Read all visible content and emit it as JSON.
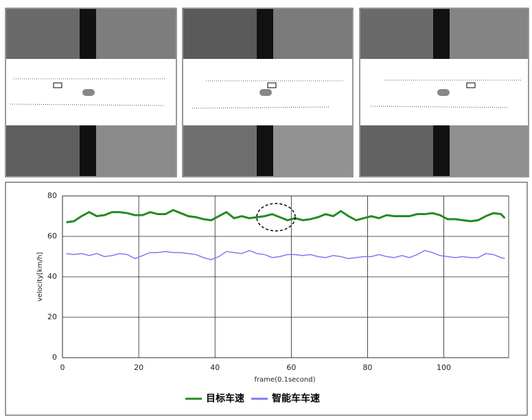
{
  "chart_data": {
    "type": "line",
    "x_label": "frame(0.1second)",
    "y_label": "velocity[km/h]",
    "x": [
      1,
      3,
      5,
      7,
      9,
      11,
      13,
      15,
      17,
      19,
      21,
      23,
      25,
      27,
      29,
      31,
      33,
      35,
      37,
      39,
      41,
      43,
      45,
      47,
      49,
      51,
      53,
      55,
      57,
      59,
      61,
      63,
      65,
      67,
      69,
      71,
      73,
      75,
      77,
      79,
      81,
      83,
      85,
      87,
      89,
      91,
      93,
      95,
      97,
      99,
      101,
      103,
      105,
      107,
      109,
      111,
      113,
      115,
      116
    ],
    "series": [
      {
        "name": "目标车速",
        "color": "#228b22",
        "values": [
          67,
          67.5,
          70,
          72,
          70,
          70.5,
          72,
          72,
          71.5,
          70.5,
          70.5,
          72,
          71,
          71,
          73,
          71.5,
          70,
          69.5,
          68.5,
          68,
          70,
          72,
          69,
          70,
          69,
          69.5,
          70,
          71,
          69.5,
          68,
          69,
          68,
          68.5,
          69.5,
          71,
          70,
          72.5,
          70,
          68,
          69,
          70,
          69,
          70.5,
          70,
          70,
          70,
          71,
          71,
          71.5,
          70.5,
          68.5,
          68.5,
          68,
          67.5,
          68,
          70,
          71.5,
          71,
          69
        ]
      },
      {
        "name": "智能车车速",
        "color": "#7b7bf0",
        "values": [
          51.5,
          51,
          51.5,
          50.5,
          51.5,
          50,
          50.5,
          51.5,
          51,
          49,
          50.5,
          52,
          52,
          52.5,
          52,
          52,
          51.5,
          51,
          49.5,
          48.5,
          50,
          52.5,
          52,
          51.5,
          53,
          51.5,
          51,
          49.5,
          50,
          51,
          51,
          50.5,
          51,
          50,
          49.5,
          50.5,
          50,
          49,
          49.5,
          50,
          50,
          51,
          50,
          49.5,
          50.5,
          49.5,
          51,
          53,
          52,
          50.5,
          50,
          49.5,
          50,
          49.5,
          49.5,
          51.5,
          51,
          49.5,
          49
        ]
      }
    ],
    "xlim": [
      0,
      117
    ],
    "ylim": [
      0,
      80
    ],
    "xticks": [
      0,
      20,
      40,
      60,
      80,
      100
    ],
    "yticks": [
      0,
      20,
      40,
      60,
      80
    ],
    "grid": true
  }
}
